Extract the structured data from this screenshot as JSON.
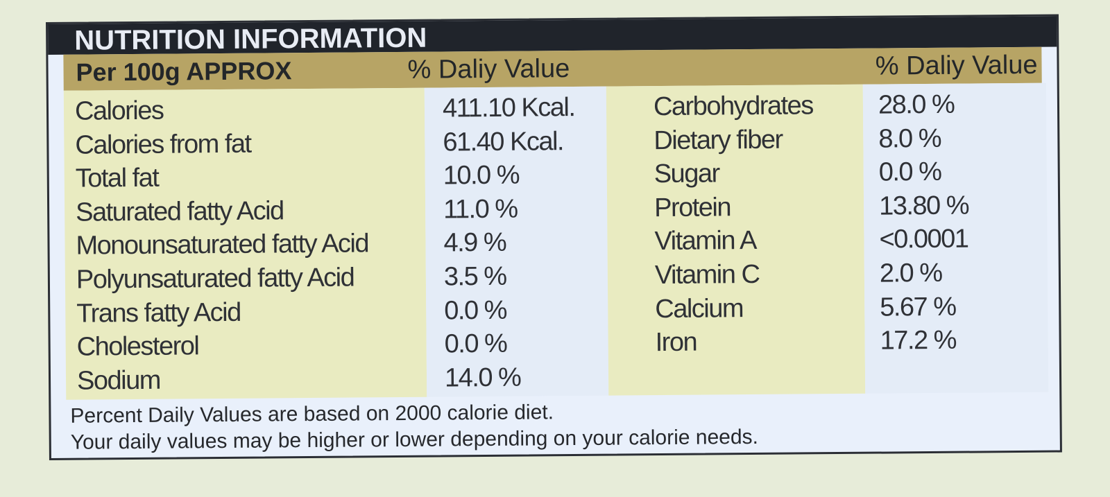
{
  "title": "NUTRITION INFORMATION",
  "header": {
    "serving": "Per 100g APPROX",
    "daily_value_left": "% Daliy Value",
    "daily_value_right": "% Daliy Value"
  },
  "left_table": [
    {
      "name": "Calories",
      "value": "411.10 Kcal."
    },
    {
      "name": "Calories from fat",
      "value": "61.40 Kcal."
    },
    {
      "name": "Total fat",
      "value": "10.0 %"
    },
    {
      "name": "Saturated fatty Acid",
      "value": "11.0 %"
    },
    {
      "name": "Monounsaturated fatty Acid",
      "value": "4.9 %"
    },
    {
      "name": "Polyunsaturated fatty Acid",
      "value": "3.5 %"
    },
    {
      "name": "Trans fatty Acid",
      "value": "0.0 %"
    },
    {
      "name": "Cholesterol",
      "value": "0.0 %"
    },
    {
      "name": "Sodium",
      "value": "14.0 %"
    }
  ],
  "right_table": [
    {
      "name": "Carbohydrates",
      "value": "28.0 %"
    },
    {
      "name": "Dietary fiber",
      "value": "8.0 %"
    },
    {
      "name": "Sugar",
      "value": "0.0 %"
    },
    {
      "name": "Protein",
      "value": "13.80 %"
    },
    {
      "name": "Vitamin A",
      "value": "<0.0001"
    },
    {
      "name": "Vitamin C",
      "value": "2.0 %"
    },
    {
      "name": "Calcium",
      "value": "5.67 %"
    },
    {
      "name": "Iron",
      "value": "17.2 %"
    }
  ],
  "footnotes": [
    "Percent Daily Values are based on 2000 calorie diet.",
    "Your daily values may be higher or lower depending on your calorie needs."
  ],
  "colors": {
    "title_bar": "#20242b",
    "header_bar": "#b7a465",
    "name_band": "#e9ebc1",
    "value_band": "#e4ecf7",
    "background": "#e7ecd9"
  }
}
